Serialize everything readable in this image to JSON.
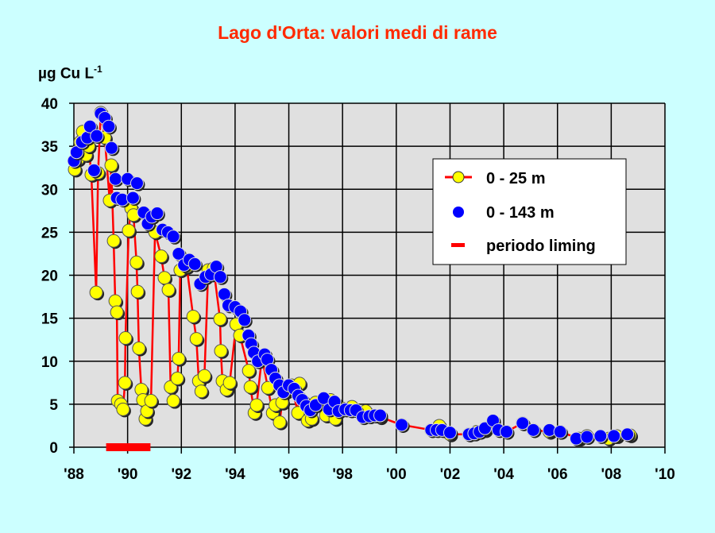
{
  "chart_data": {
    "type": "line",
    "title": "Lago d'Orta: valori medi di rame",
    "ylabel": "µg Cu L",
    "ylabel_exponent": "-1",
    "xlabel": "",
    "xlim": [
      1988,
      2010
    ],
    "ylim": [
      0,
      40
    ],
    "grid": true,
    "legend_position": "right",
    "x_ticks": [
      {
        "value": 1988,
        "label": "'88"
      },
      {
        "value": 1990,
        "label": "'90"
      },
      {
        "value": 1992,
        "label": "'92"
      },
      {
        "value": 1994,
        "label": "'94"
      },
      {
        "value": 1996,
        "label": "'96"
      },
      {
        "value": 1998,
        "label": "'98"
      },
      {
        "value": 2000,
        "label": "'00"
      },
      {
        "value": 2002,
        "label": "'02"
      },
      {
        "value": 2004,
        "label": "'04"
      },
      {
        "value": 2006,
        "label": "'06"
      },
      {
        "value": 2008,
        "label": "'08"
      },
      {
        "value": 2010,
        "label": "'10"
      }
    ],
    "y_ticks": [
      0,
      5,
      10,
      15,
      20,
      25,
      30,
      35,
      40
    ],
    "colors": {
      "background": "#ccffff",
      "plot": "#e0e0e0",
      "line": "#ff0000",
      "yellow": "#ffff00",
      "blue": "#0000ff",
      "title": "#ff2a00"
    },
    "series": [
      {
        "name": "0 - 25 m",
        "style": "line+marker",
        "x": [
          1988.03,
          1988.15,
          1988.24,
          1988.33,
          1988.45,
          1988.55,
          1988.65,
          1988.83,
          1988.9,
          1989.0,
          1989.15,
          1989.33,
          1989.39,
          1989.48,
          1989.54,
          1989.6,
          1989.63,
          1989.75,
          1989.83,
          1989.9,
          1989.92,
          1990.04,
          1990.13,
          1990.22,
          1990.33,
          1990.37,
          1990.42,
          1990.51,
          1990.57,
          1990.66,
          1990.72,
          1990.87,
          1991.02,
          1991.25,
          1991.37,
          1991.52,
          1991.6,
          1991.7,
          1991.85,
          1991.9,
          1991.96,
          1992.2,
          1992.44,
          1992.56,
          1992.65,
          1992.74,
          1992.86,
          1993.0,
          1993.2,
          1993.44,
          1993.47,
          1993.53,
          1993.68,
          1993.8,
          1994.04,
          1994.18,
          1994.51,
          1994.57,
          1994.72,
          1994.8,
          1995.0,
          1995.22,
          1995.4,
          1995.5,
          1995.66,
          1995.75,
          1995.9,
          1996.1,
          1996.34,
          1996.4,
          1996.7,
          1996.85,
          1997.0,
          1997.38,
          1997.55,
          1997.73,
          1998.0,
          1998.35,
          1998.86,
          1999.4,
          2000.2,
          2001.3,
          2001.6,
          2002.0,
          2002.7,
          2003.0,
          2003.3,
          2003.6,
          2004.1,
          2004.7,
          2005.1,
          2005.7,
          2006.1,
          2006.8,
          2007.1,
          2007.9,
          2008.2,
          2008.7
        ],
        "values": [
          32.3,
          33.5,
          35.5,
          36.7,
          34.0,
          35.0,
          31.7,
          18.0,
          31.9,
          38.9,
          36.0,
          28.7,
          32.8,
          24.0,
          17.0,
          15.7,
          5.4,
          5.0,
          4.4,
          7.5,
          12.7,
          25.2,
          27.8,
          27.0,
          21.5,
          18.1,
          11.5,
          6.7,
          5.5,
          3.3,
          4.2,
          5.4,
          25.0,
          22.2,
          19.7,
          18.3,
          7.0,
          5.4,
          8.0,
          10.3,
          20.6,
          21.0,
          15.2,
          12.6,
          7.7,
          6.5,
          8.3,
          20.6,
          20.8,
          14.9,
          11.2,
          7.7,
          6.7,
          7.5,
          14.3,
          13.0,
          8.9,
          7.0,
          4.0,
          4.9,
          10.5,
          6.9,
          4.0,
          4.9,
          2.9,
          5.2,
          6.5,
          7.2,
          4.0,
          7.4,
          3.1,
          3.3,
          5.2,
          3.7,
          5.5,
          3.3,
          4.5,
          4.7,
          4.2,
          3.5,
          2.6,
          2.0,
          2.5,
          1.5,
          1.5,
          1.8,
          2.0,
          3.0,
          1.8,
          2.8,
          2.0,
          1.8,
          1.8,
          1.0,
          1.3,
          1.0,
          1.3,
          1.4
        ]
      },
      {
        "name": "0 - 143 m",
        "style": "marker",
        "x": [
          1988.0,
          1988.1,
          1988.3,
          1988.5,
          1988.6,
          1988.75,
          1988.85,
          1989.0,
          1989.15,
          1989.3,
          1989.4,
          1989.55,
          1989.6,
          1989.8,
          1990.0,
          1990.2,
          1990.35,
          1990.6,
          1990.75,
          1990.9,
          1991.1,
          1991.3,
          1991.5,
          1991.7,
          1991.9,
          1992.1,
          1992.3,
          1992.5,
          1992.7,
          1992.9,
          1993.1,
          1993.3,
          1993.45,
          1993.6,
          1993.75,
          1994.0,
          1994.2,
          1994.35,
          1994.5,
          1994.6,
          1994.7,
          1994.85,
          1995.1,
          1995.2,
          1995.35,
          1995.5,
          1995.65,
          1995.8,
          1996.0,
          1996.2,
          1996.35,
          1996.5,
          1996.65,
          1996.8,
          1997.0,
          1997.3,
          1997.5,
          1997.7,
          1997.85,
          1998.1,
          1998.3,
          1998.5,
          1998.75,
          1999.0,
          1999.2,
          1999.4,
          2000.2,
          2001.3,
          2001.5,
          2001.7,
          2002.0,
          2002.7,
          2002.9,
          2003.1,
          2003.3,
          2003.6,
          2003.8,
          2004.1,
          2004.7,
          2005.1,
          2005.7,
          2006.1,
          2006.7,
          2007.1,
          2007.6,
          2008.1,
          2008.6
        ],
        "values": [
          33.3,
          34.3,
          35.5,
          36.0,
          37.3,
          32.2,
          36.2,
          38.8,
          38.3,
          37.3,
          34.8,
          31.2,
          29.0,
          28.8,
          31.2,
          29.0,
          30.7,
          27.3,
          26.0,
          26.8,
          27.2,
          25.3,
          25.0,
          24.5,
          22.5,
          21.2,
          21.8,
          21.3,
          19.0,
          19.8,
          20.1,
          21.0,
          19.8,
          17.8,
          16.5,
          16.3,
          15.8,
          14.8,
          13.0,
          12.0,
          11.0,
          10.0,
          10.8,
          10.2,
          9.0,
          8.0,
          7.2,
          6.4,
          7.2,
          6.8,
          6.0,
          5.5,
          4.8,
          4.3,
          4.9,
          5.7,
          4.4,
          5.3,
          4.2,
          4.4,
          4.3,
          4.3,
          3.5,
          3.6,
          3.7,
          3.7,
          2.6,
          2.0,
          2.0,
          2.0,
          1.7,
          1.5,
          1.6,
          1.8,
          2.2,
          3.1,
          2.0,
          1.8,
          2.8,
          2.0,
          2.0,
          1.8,
          1.0,
          1.2,
          1.3,
          1.3,
          1.5
        ]
      },
      {
        "name": "periodo liming",
        "style": "bar",
        "x_start": 1989.2,
        "x_end": 1990.85
      }
    ]
  }
}
